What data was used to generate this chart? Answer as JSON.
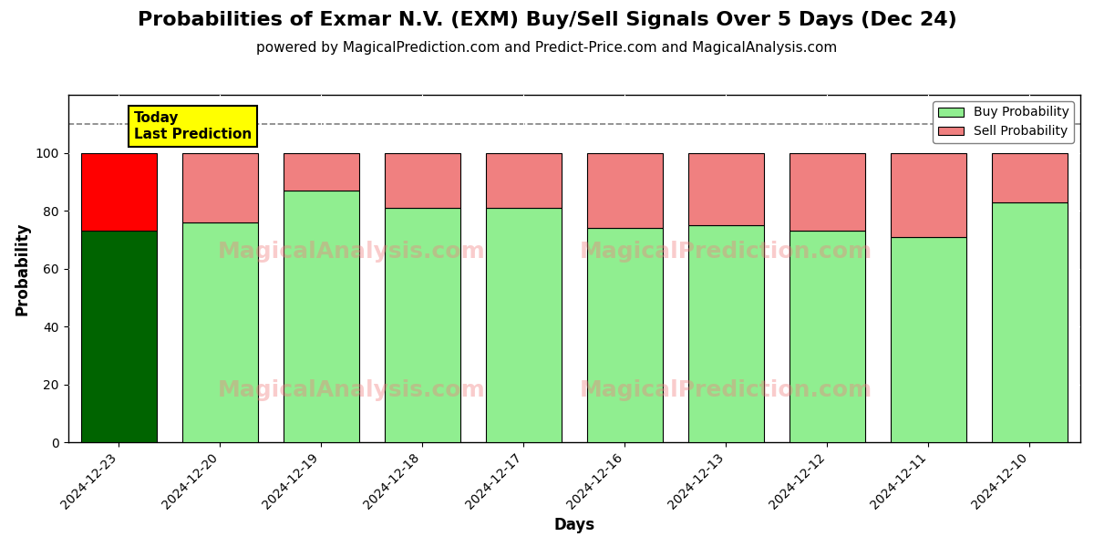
{
  "title": "Probabilities of Exmar N.V. (EXM) Buy/Sell Signals Over 5 Days (Dec 24)",
  "subtitle": "powered by MagicalPrediction.com and Predict-Price.com and MagicalAnalysis.com",
  "xlabel": "Days",
  "ylabel": "Probability",
  "dates": [
    "2024-12-23",
    "2024-12-20",
    "2024-12-19",
    "2024-12-18",
    "2024-12-17",
    "2024-12-16",
    "2024-12-13",
    "2024-12-12",
    "2024-12-11",
    "2024-12-10"
  ],
  "buy_values": [
    73,
    76,
    87,
    81,
    81,
    74,
    75,
    73,
    71,
    83
  ],
  "sell_values": [
    27,
    24,
    13,
    19,
    19,
    26,
    25,
    27,
    29,
    17
  ],
  "today_buy_color": "#006400",
  "today_sell_color": "#FF0000",
  "buy_color": "#90EE90",
  "sell_color": "#F08080",
  "bar_edge_color": "#000000",
  "today_label_bg": "#FFFF00",
  "today_label_text": "Today\nLast Prediction",
  "ylim": [
    0,
    120
  ],
  "yticks": [
    0,
    20,
    40,
    60,
    80,
    100
  ],
  "dashed_line_y": 110,
  "watermark_color": "#F08080",
  "background_color": "#ffffff",
  "legend_buy_label": "Buy Probability",
  "legend_sell_label": "Sell Probability",
  "title_fontsize": 16,
  "subtitle_fontsize": 11,
  "axis_label_fontsize": 12,
  "tick_fontsize": 10
}
